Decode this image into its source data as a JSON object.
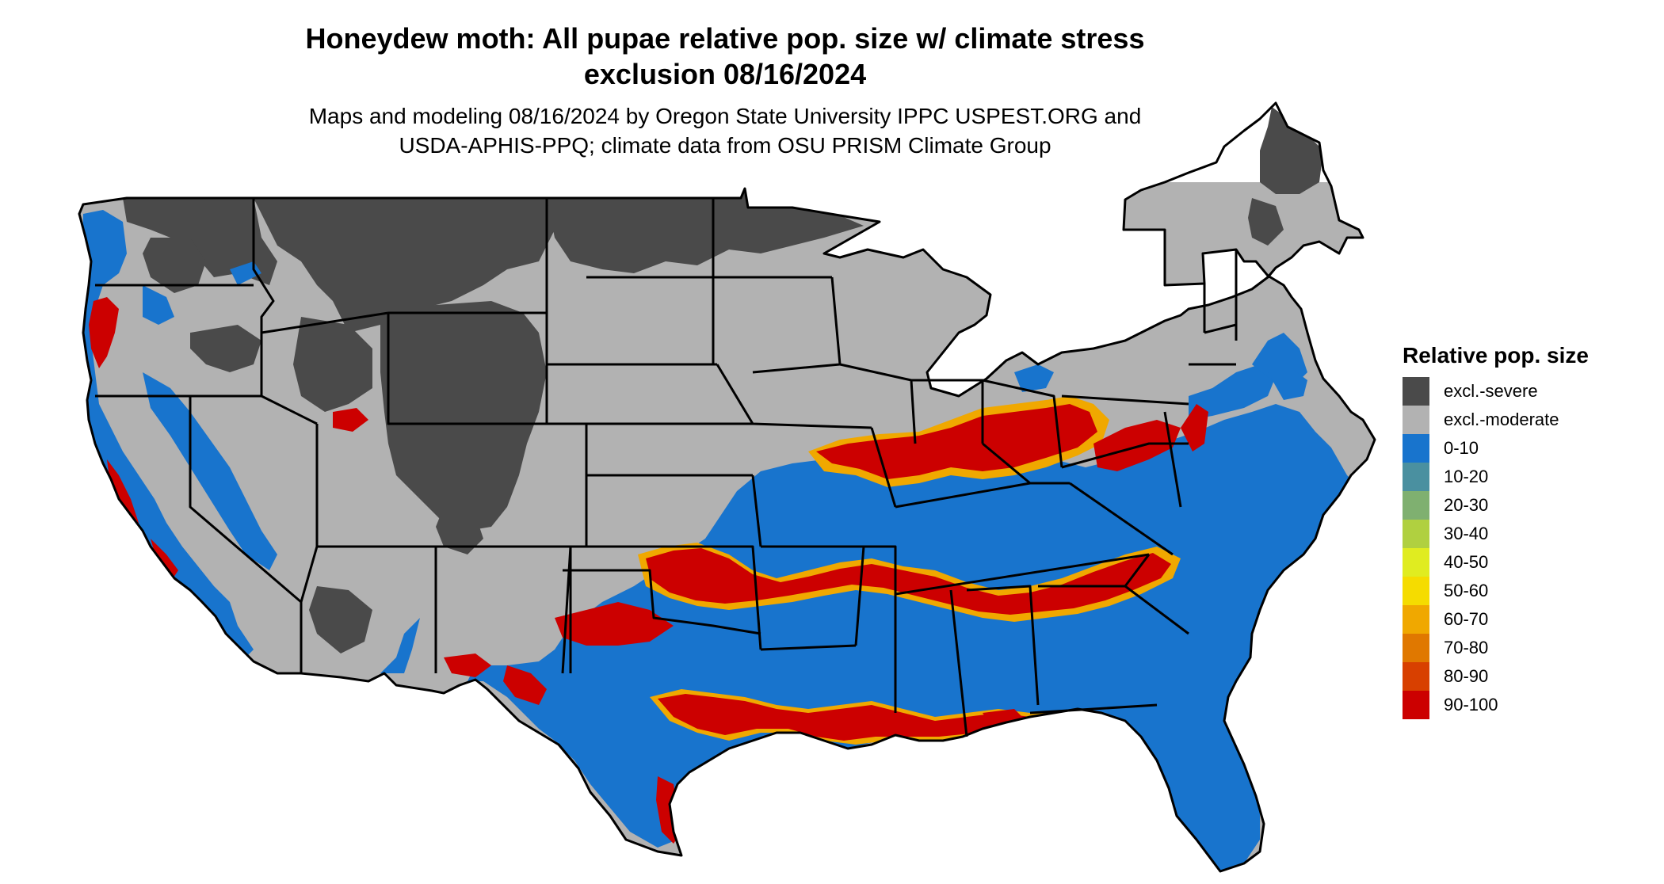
{
  "header": {
    "title_line1": "Honeydew moth: All pupae relative pop. size w/ climate stress",
    "title_line2": "exclusion 08/16/2024",
    "subtitle_line1": "Maps and modeling 08/16/2024 by Oregon State University IPPC USPEST.ORG and",
    "subtitle_line2": "USDA-APHIS-PPQ; climate data from OSU PRISM Climate Group"
  },
  "legend": {
    "title": "Relative pop. size",
    "items": [
      {
        "label": "excl.-severe",
        "color": "#4a4a4a"
      },
      {
        "label": "excl.-moderate",
        "color": "#b2b2b2"
      },
      {
        "label": "0-10",
        "color": "#1874cd"
      },
      {
        "label": "10-20",
        "color": "#4a90a0"
      },
      {
        "label": "20-30",
        "color": "#7fb070"
      },
      {
        "label": "30-40",
        "color": "#b0d040"
      },
      {
        "label": "40-50",
        "color": "#e0ec20"
      },
      {
        "label": "50-60",
        "color": "#f5dc00"
      },
      {
        "label": "60-70",
        "color": "#f0a800"
      },
      {
        "label": "70-80",
        "color": "#e07800"
      },
      {
        "label": "80-90",
        "color": "#d84000"
      },
      {
        "label": "90-100",
        "color": "#cc0000"
      }
    ]
  }
}
